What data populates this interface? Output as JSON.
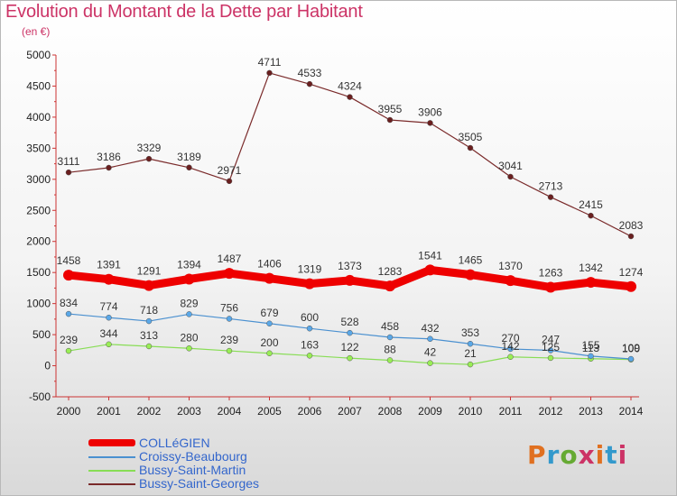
{
  "title": "Evolution du Montant de la Dette par Habitant",
  "subtitle": "(en €)",
  "logo": {
    "text": "Proxiti",
    "colors": [
      "#e07020",
      "#3399cc",
      "#66aa33",
      "#cc3366",
      "#e07020",
      "#3399cc",
      "#cc3366"
    ]
  },
  "chart_data": {
    "type": "line",
    "x": [
      "2000",
      "2001",
      "2002",
      "2003",
      "2004",
      "2005",
      "2006",
      "2007",
      "2008",
      "2009",
      "2010",
      "2011",
      "2012",
      "2013",
      "2014"
    ],
    "ylim": [
      -500,
      5000
    ],
    "yticks": [
      "-500",
      "0",
      "500",
      "1000",
      "1500",
      "2000",
      "2500",
      "3000",
      "3500",
      "4000",
      "4500",
      "5000"
    ],
    "grid": false,
    "legend_position": "bottom-left",
    "series": [
      {
        "name": "COLLéGIEN",
        "color": "#ee0000",
        "values": [
          1458,
          1391,
          1291,
          1394,
          1487,
          1406,
          1319,
          1373,
          1283,
          1541,
          1465,
          1370,
          1263,
          1342,
          1274
        ],
        "labels": [
          "1458",
          "1391",
          "1291",
          "1394",
          "1487",
          "1406",
          "1319",
          "1373",
          "1283",
          "1541",
          "1465",
          "1370",
          "1263",
          "1342",
          "1274"
        ]
      },
      {
        "name": "Croissy-Beaubourg",
        "color": "#4a90d0",
        "values": [
          834,
          774,
          718,
          829,
          756,
          679,
          600,
          528,
          458,
          432,
          353,
          270,
          247,
          155,
          109
        ],
        "labels": [
          "834",
          "774",
          "718",
          "829",
          "756",
          "679",
          "600",
          "528",
          "458",
          "432",
          "353",
          "270",
          "247",
          "155",
          "109"
        ]
      },
      {
        "name": "Bussy-Saint-Martin",
        "color": "#88dd55",
        "values": [
          239,
          344,
          313,
          280,
          239,
          200,
          163,
          122,
          88,
          42,
          21,
          142,
          125,
          113,
          100
        ],
        "labels": [
          "239",
          "344",
          "313",
          "280",
          "239",
          "200",
          "163",
          "122",
          "88",
          "42",
          "21",
          "142",
          "125",
          "113",
          "100"
        ]
      },
      {
        "name": "Bussy-Saint-Georges",
        "color": "#7a2a2a",
        "values": [
          3111,
          3186,
          3329,
          3189,
          2971,
          4711,
          4533,
          4324,
          3955,
          3906,
          3505,
          3041,
          2713,
          2415,
          2083
        ],
        "labels": [
          "3111",
          "3186",
          "3329",
          "3189",
          "2971",
          "4711",
          "4533",
          "4324",
          "3955",
          "3906",
          "3505",
          "3041",
          "2713",
          "2415",
          "2083"
        ]
      }
    ]
  }
}
